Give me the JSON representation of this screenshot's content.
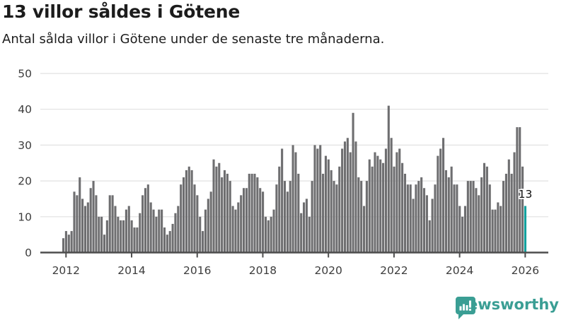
{
  "header": {
    "title": "13 villor såldes i Götene",
    "subtitle": "Antal sålda villor i Götene under de senaste tre månaderna."
  },
  "chart_data": {
    "type": "bar",
    "title": "13 villor såldes i Götene",
    "subtitle": "Antal sålda villor i Götene under de senaste tre månaderna.",
    "xlabel": "",
    "ylabel": "",
    "x_start": "2011-11",
    "x_freq": "monthly",
    "values": [
      4,
      6,
      5,
      6,
      17,
      16,
      21,
      15,
      13,
      14,
      18,
      20,
      16,
      10,
      10,
      5,
      9,
      16,
      16,
      13,
      10,
      9,
      9,
      12,
      13,
      9,
      7,
      7,
      11,
      16,
      18,
      19,
      14,
      12,
      10,
      12,
      12,
      7,
      5,
      6,
      8,
      11,
      13,
      19,
      21,
      23,
      24,
      23,
      19,
      16,
      10,
      6,
      12,
      15,
      17,
      26,
      24,
      25,
      21,
      23,
      22,
      20,
      13,
      12,
      14,
      16,
      18,
      18,
      22,
      22,
      22,
      21,
      18,
      17,
      10,
      9,
      10,
      12,
      19,
      24,
      29,
      20,
      17,
      20,
      30,
      28,
      22,
      11,
      14,
      15,
      10,
      20,
      30,
      29,
      30,
      22,
      27,
      26,
      23,
      20,
      19,
      24,
      29,
      31,
      32,
      28,
      39,
      31,
      21,
      20,
      13,
      20,
      26,
      24,
      28,
      27,
      26,
      25,
      29,
      41,
      32,
      24,
      28,
      29,
      25,
      22,
      19,
      19,
      15,
      19,
      20,
      21,
      18,
      16,
      9,
      15,
      19,
      27,
      29,
      32,
      23,
      21,
      24,
      19,
      19,
      13,
      10,
      13,
      20,
      20,
      20,
      18,
      16,
      21,
      25,
      24,
      19,
      12,
      12,
      14,
      13,
      20,
      22,
      26,
      22,
      28,
      35,
      35,
      24,
      13
    ],
    "highlight_last": {
      "value": 13,
      "label": "13",
      "color": "#12a19e"
    },
    "bar_color": "#6e6e70",
    "xticks": [
      2012,
      2014,
      2016,
      2018,
      2020,
      2022,
      2024,
      2026
    ],
    "yticks": [
      0,
      10,
      20,
      30,
      40,
      50
    ],
    "ylim": [
      0,
      50
    ],
    "grid": "horizontal",
    "legend": "none",
    "gridline_color": "#e1e1e1",
    "axis_color": "#4d4d4d",
    "tick_label_color": "#3d3d3d"
  },
  "footer": {
    "brand": "Newsworthy",
    "brand_color": "#3a9e94",
    "logo_icon": "chart-speech-bubble-icon"
  }
}
